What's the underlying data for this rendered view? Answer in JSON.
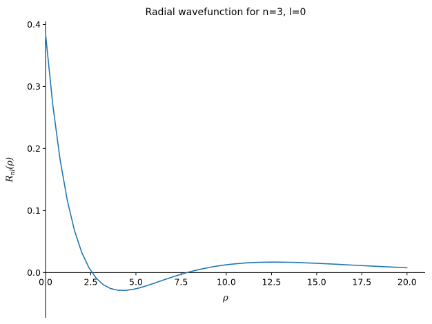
{
  "chart_data": {
    "type": "line",
    "title": "Radial wavefunction for n=3, l=0",
    "xlabel": "ρ",
    "ylabel": "R_nl(ρ)",
    "xlim": [
      0,
      21
    ],
    "ylim": [
      -0.073,
      0.405
    ],
    "xticks": [
      0.0,
      2.5,
      5.0,
      7.5,
      10.0,
      12.5,
      15.0,
      17.5,
      20.0
    ],
    "xtick_labels": [
      "0.0",
      "2.5",
      "5.0",
      "7.5",
      "10.0",
      "12.5",
      "15.0",
      "17.5",
      "20.0"
    ],
    "yticks": [
      0.0,
      0.1,
      0.2,
      0.3,
      0.4
    ],
    "ytick_labels": [
      "0.0",
      "0.1",
      "0.2",
      "0.3",
      "0.4"
    ],
    "grid": false,
    "series": [
      {
        "color": "#1f77b4",
        "x": [
          0.0,
          0.4,
          0.8,
          1.2,
          1.6,
          2.0,
          2.4,
          2.8,
          3.2,
          3.6,
          4.0,
          4.4,
          4.8,
          5.2,
          5.6,
          6.0,
          6.4,
          6.8,
          7.2,
          7.6,
          8.0,
          8.4,
          8.8,
          9.2,
          9.6,
          10.0,
          10.5,
          11.0,
          11.5,
          12.0,
          12.5,
          13.0,
          13.5,
          14.0,
          14.5,
          15.0,
          15.5,
          16.0,
          16.5,
          17.0,
          17.5,
          18.0,
          18.5,
          19.0,
          19.5,
          20.0
        ],
        "y": [
          0.3849,
          0.2705,
          0.1829,
          0.1168,
          0.0679,
          0.0326,
          0.0078,
          -0.009,
          -0.0197,
          -0.0258,
          -0.0285,
          -0.0288,
          -0.0274,
          -0.0247,
          -0.0212,
          -0.0174,
          -0.0133,
          -0.0093,
          -0.0055,
          -0.002,
          0.0013,
          0.0042,
          0.0067,
          0.009,
          0.0109,
          0.0125,
          0.0141,
          0.0153,
          0.0161,
          0.0166,
          0.0168,
          0.0167,
          0.0165,
          0.0161,
          0.0155,
          0.0149,
          0.0142,
          0.0135,
          0.0127,
          0.0119,
          0.0112,
          0.0104,
          0.0097,
          0.009,
          0.0083,
          0.0076
        ]
      }
    ]
  }
}
